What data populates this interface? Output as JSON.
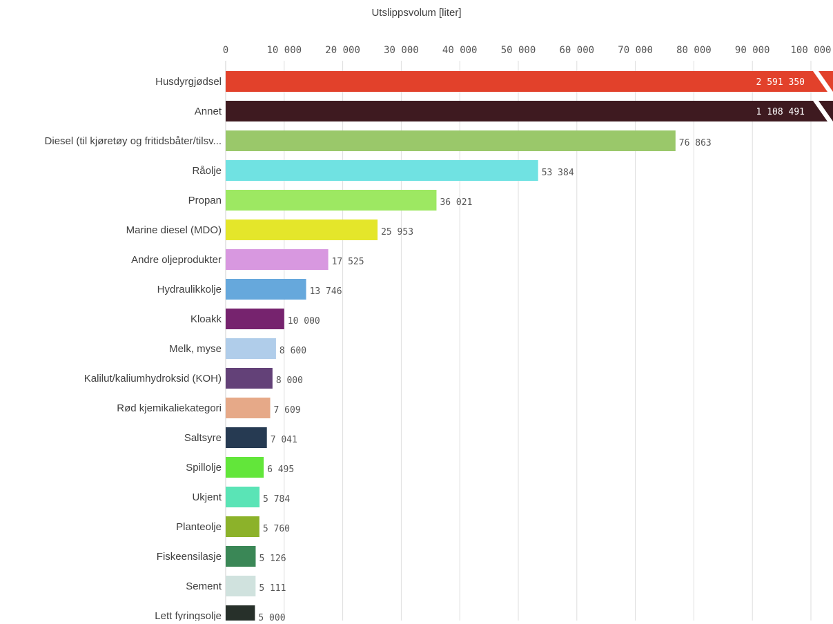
{
  "chart_data": {
    "type": "bar",
    "orientation": "horizontal",
    "xlabel": "Utslippsvolum [liter]",
    "xlim": [
      0,
      100000
    ],
    "xticks": [
      0,
      10000,
      20000,
      30000,
      40000,
      50000,
      60000,
      70000,
      80000,
      90000,
      100000
    ],
    "xtick_labels": [
      "0",
      "10 000",
      "20 000",
      "30 000",
      "40 000",
      "50 000",
      "60 000",
      "70 000",
      "80 000",
      "90 000",
      "100 000"
    ],
    "grid": true,
    "categories": [
      "Husdyrgjødsel",
      "Annet",
      "Diesel (til kjøretøy og fritidsbåter/tilsv...",
      "Råolje",
      "Propan",
      "Marine diesel (MDO)",
      "Andre oljeprodukter",
      "Hydraulikkolje",
      "Kloakk",
      "Melk, myse",
      "Kalilut/kaliumhydroksid (KOH)",
      "Rød kjemikaliekategori",
      "Saltsyre",
      "Spillolje",
      "Ukjent",
      "Planteolje",
      "Fiskeensilasje",
      "Sement",
      "Lett fyringsolje"
    ],
    "values": [
      2591350,
      1108491,
      76863,
      53384,
      36021,
      25953,
      17525,
      13746,
      10000,
      8600,
      8000,
      7609,
      7041,
      6495,
      5784,
      5760,
      5126,
      5111,
      5000
    ],
    "value_labels": [
      "2 591 350",
      "1 108 491",
      "76 863",
      "53 384",
      "36 021",
      "25 953",
      "17 525",
      "13 746",
      "10 000",
      "8 600",
      "8 000",
      "7 609",
      "7 041",
      "6 495",
      "5 784",
      "5 760",
      "5 126",
      "5 111",
      "5 000"
    ],
    "colors": [
      "#e2412b",
      "#3e1a20",
      "#9ac86a",
      "#70e2e2",
      "#9de862",
      "#e4e62a",
      "#d898e0",
      "#66a8dc",
      "#76236e",
      "#b0cdea",
      "#634178",
      "#e6a988",
      "#263a52",
      "#62e63a",
      "#5ae4b6",
      "#8cb22a",
      "#3a8756",
      "#d0e2de",
      "#27302a"
    ]
  }
}
